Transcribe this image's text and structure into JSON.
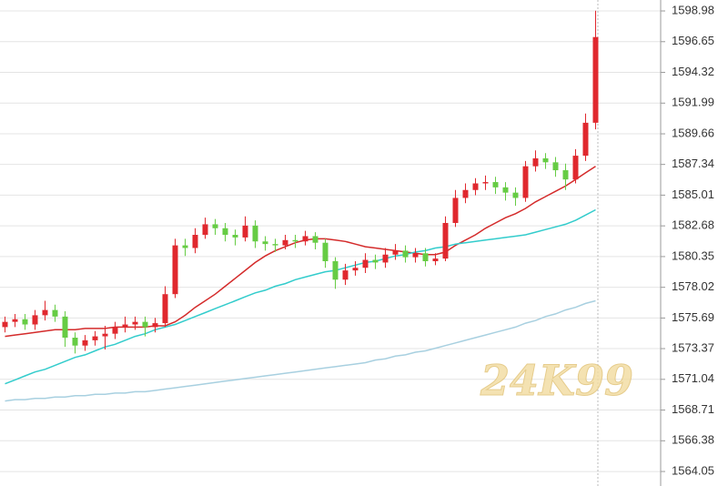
{
  "chart_data": {
    "type": "candlestick",
    "watermark": "24K99",
    "categories": [
      null,
      null,
      null,
      null,
      null,
      null,
      null,
      null,
      null,
      null,
      null,
      null,
      null,
      null,
      null,
      null,
      null,
      null,
      null,
      null,
      null,
      null,
      null,
      null,
      null,
      null,
      null,
      null,
      null,
      null,
      null,
      null,
      null,
      null,
      null,
      null,
      null,
      null,
      null,
      null,
      null,
      null,
      null,
      null,
      null,
      null,
      null,
      null,
      null,
      null,
      null,
      null,
      null,
      null,
      null,
      null,
      null,
      null,
      null,
      null
    ],
    "open": [
      1575.0,
      1575.4,
      1575.6,
      1575.2,
      1575.9,
      1576.3,
      1575.8,
      1574.2,
      1573.6,
      1574.0,
      1574.3,
      1574.5,
      1575.0,
      1575.2,
      1575.4,
      1575.0,
      1575.3,
      1577.5,
      1581.2,
      1581.0,
      1582.0,
      1582.8,
      1582.5,
      1582.0,
      1581.8,
      1582.7,
      1581.5,
      1581.3,
      1581.2,
      1581.6,
      1581.5,
      1581.9,
      1581.4,
      1580.0,
      1578.6,
      1579.3,
      1579.5,
      1580.1,
      1579.9,
      1580.5,
      1580.8,
      1580.3,
      1580.6,
      1580.0,
      1580.2,
      1582.9,
      1584.8,
      1585.4,
      1585.9,
      1586.0,
      1585.6,
      1585.2,
      1584.8,
      1587.2,
      1587.8,
      1587.5,
      1586.9,
      1586.2,
      1588.0,
      1590.5
    ],
    "high": [
      1575.8,
      1576.0,
      1576.0,
      1576.3,
      1577.0,
      1576.7,
      1576.2,
      1574.6,
      1574.4,
      1574.7,
      1575.1,
      1575.4,
      1575.8,
      1575.8,
      1575.8,
      1575.7,
      1578.1,
      1581.7,
      1581.7,
      1582.5,
      1583.3,
      1583.2,
      1582.9,
      1582.4,
      1583.4,
      1583.1,
      1581.9,
      1581.7,
      1582.0,
      1582.0,
      1582.3,
      1582.2,
      1581.7,
      1580.3,
      1579.8,
      1580.0,
      1580.6,
      1580.5,
      1581.0,
      1581.3,
      1581.2,
      1581.0,
      1581.0,
      1580.6,
      1583.4,
      1585.4,
      1585.9,
      1586.3,
      1586.5,
      1586.4,
      1586.0,
      1585.6,
      1587.6,
      1588.4,
      1588.2,
      1587.9,
      1587.4,
      1588.5,
      1591.2,
      1599.0
    ],
    "low": [
      1574.6,
      1575.0,
      1574.8,
      1574.8,
      1575.5,
      1575.4,
      1573.5,
      1573.0,
      1573.2,
      1573.6,
      1573.3,
      1574.1,
      1574.6,
      1574.8,
      1574.3,
      1574.6,
      1575.0,
      1577.2,
      1580.4,
      1580.6,
      1581.7,
      1582.0,
      1581.5,
      1581.2,
      1581.5,
      1581.0,
      1580.8,
      1580.7,
      1580.9,
      1581.0,
      1581.2,
      1580.9,
      1579.5,
      1577.9,
      1578.2,
      1578.9,
      1579.1,
      1579.4,
      1579.5,
      1580.1,
      1579.9,
      1579.9,
      1579.6,
      1579.7,
      1580.0,
      1582.6,
      1584.4,
      1585.0,
      1585.4,
      1585.1,
      1584.6,
      1584.2,
      1584.5,
      1586.8,
      1587.0,
      1586.4,
      1585.4,
      1585.9,
      1587.6,
      1590.0
    ],
    "close": [
      1575.4,
      1575.6,
      1575.2,
      1575.9,
      1576.3,
      1575.8,
      1574.2,
      1573.6,
      1574.0,
      1574.3,
      1574.5,
      1575.0,
      1575.2,
      1575.4,
      1575.0,
      1575.3,
      1577.5,
      1581.2,
      1581.0,
      1582.0,
      1582.8,
      1582.5,
      1582.0,
      1581.8,
      1582.7,
      1581.5,
      1581.3,
      1581.2,
      1581.6,
      1581.5,
      1581.9,
      1581.4,
      1580.0,
      1578.6,
      1579.3,
      1579.5,
      1580.1,
      1579.9,
      1580.5,
      1580.8,
      1580.3,
      1580.6,
      1580.0,
      1580.2,
      1582.9,
      1584.8,
      1585.4,
      1585.9,
      1586.0,
      1585.6,
      1585.2,
      1584.8,
      1587.2,
      1587.8,
      1587.5,
      1586.9,
      1586.2,
      1588.0,
      1590.5,
      1597.0
    ],
    "up_color": "#e0282e",
    "down_color": "#66cc44",
    "series": [
      {
        "color": "#d42b2b",
        "values": [
          1574.3,
          1574.4,
          1574.5,
          1574.6,
          1574.7,
          1574.8,
          1574.8,
          1574.8,
          1574.9,
          1574.9,
          1574.9,
          1575.0,
          1575.0,
          1575.0,
          1575.0,
          1575.1,
          1575.1,
          1575.4,
          1575.9,
          1576.5,
          1577.0,
          1577.5,
          1578.1,
          1578.7,
          1579.3,
          1579.9,
          1580.4,
          1580.8,
          1581.1,
          1581.4,
          1581.6,
          1581.7,
          1581.7,
          1581.6,
          1581.5,
          1581.3,
          1581.1,
          1581.0,
          1580.9,
          1580.8,
          1580.7,
          1580.6,
          1580.5,
          1580.5,
          1580.7,
          1581.2,
          1581.6,
          1582.0,
          1582.5,
          1582.9,
          1583.3,
          1583.6,
          1584.0,
          1584.5,
          1584.9,
          1585.3,
          1585.7,
          1586.2,
          1586.7,
          1587.2
        ]
      },
      {
        "color": "#33cccc",
        "values": [
          1570.7,
          1571.0,
          1571.3,
          1571.6,
          1571.8,
          1572.1,
          1572.4,
          1572.7,
          1572.9,
          1573.2,
          1573.5,
          1573.7,
          1574.0,
          1574.3,
          1574.5,
          1574.8,
          1575.0,
          1575.2,
          1575.5,
          1575.8,
          1576.1,
          1576.4,
          1576.7,
          1577.0,
          1577.3,
          1577.6,
          1577.8,
          1578.1,
          1578.3,
          1578.6,
          1578.8,
          1579.0,
          1579.2,
          1579.3,
          1579.5,
          1579.7,
          1579.9,
          1580.0,
          1580.2,
          1580.4,
          1580.5,
          1580.7,
          1580.8,
          1581.0,
          1581.1,
          1581.3,
          1581.4,
          1581.5,
          1581.6,
          1581.7,
          1581.8,
          1581.9,
          1582.0,
          1582.2,
          1582.4,
          1582.6,
          1582.8,
          1583.1,
          1583.5,
          1583.9
        ]
      },
      {
        "color": "#a8d0e0",
        "values": [
          1569.4,
          1569.5,
          1569.5,
          1569.6,
          1569.6,
          1569.7,
          1569.7,
          1569.8,
          1569.8,
          1569.9,
          1569.9,
          1570.0,
          1570.0,
          1570.1,
          1570.1,
          1570.2,
          1570.3,
          1570.4,
          1570.5,
          1570.6,
          1570.7,
          1570.8,
          1570.9,
          1571.0,
          1571.1,
          1571.2,
          1571.3,
          1571.4,
          1571.5,
          1571.6,
          1571.7,
          1571.8,
          1571.9,
          1572.0,
          1572.1,
          1572.2,
          1572.3,
          1572.5,
          1572.6,
          1572.8,
          1572.9,
          1573.1,
          1573.2,
          1573.4,
          1573.6,
          1573.8,
          1574.0,
          1574.2,
          1574.4,
          1574.6,
          1574.8,
          1575.0,
          1575.3,
          1575.5,
          1575.8,
          1576.0,
          1576.3,
          1576.5,
          1576.8,
          1577.0
        ]
      }
    ],
    "ylim": [
      1562.95,
      1599.81
    ],
    "yticks": [
      1598.98,
      1596.65,
      1594.32,
      1591.99,
      1589.66,
      1587.34,
      1585.01,
      1582.68,
      1580.35,
      1578.02,
      1575.69,
      1573.37,
      1571.04,
      1568.71,
      1566.38,
      1564.05
    ],
    "grid": true
  }
}
